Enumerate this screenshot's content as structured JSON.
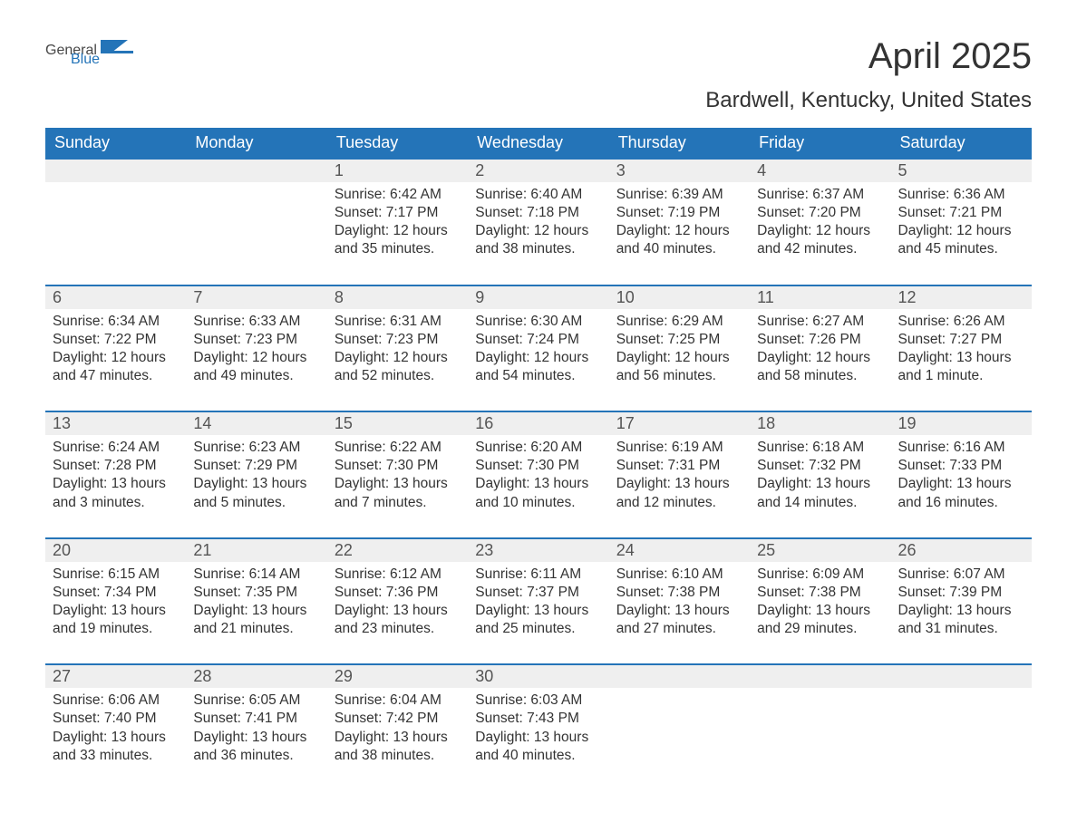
{
  "logo": {
    "general": "General",
    "blue": "Blue"
  },
  "title": "April 2025",
  "location": "Bardwell, Kentucky, United States",
  "colors": {
    "header_bg": "#2474b8",
    "header_text": "#ffffff",
    "daynum_bg": "#efefef",
    "border": "#2474b8",
    "logo_gray": "#474747",
    "logo_blue": "#2474b8",
    "text": "#333333",
    "background": "#ffffff"
  },
  "day_headers": [
    "Sunday",
    "Monday",
    "Tuesday",
    "Wednesday",
    "Thursday",
    "Friday",
    "Saturday"
  ],
  "weeks": [
    {
      "nums": [
        "",
        "",
        "1",
        "2",
        "3",
        "4",
        "5"
      ],
      "cells": [
        {
          "lines": [
            "",
            "",
            "",
            ""
          ]
        },
        {
          "lines": [
            "",
            "",
            "",
            ""
          ]
        },
        {
          "lines": [
            "Sunrise: 6:42 AM",
            "Sunset: 7:17 PM",
            "Daylight: 12 hours",
            "and 35 minutes."
          ]
        },
        {
          "lines": [
            "Sunrise: 6:40 AM",
            "Sunset: 7:18 PM",
            "Daylight: 12 hours",
            "and 38 minutes."
          ]
        },
        {
          "lines": [
            "Sunrise: 6:39 AM",
            "Sunset: 7:19 PM",
            "Daylight: 12 hours",
            "and 40 minutes."
          ]
        },
        {
          "lines": [
            "Sunrise: 6:37 AM",
            "Sunset: 7:20 PM",
            "Daylight: 12 hours",
            "and 42 minutes."
          ]
        },
        {
          "lines": [
            "Sunrise: 6:36 AM",
            "Sunset: 7:21 PM",
            "Daylight: 12 hours",
            "and 45 minutes."
          ]
        }
      ]
    },
    {
      "nums": [
        "6",
        "7",
        "8",
        "9",
        "10",
        "11",
        "12"
      ],
      "cells": [
        {
          "lines": [
            "Sunrise: 6:34 AM",
            "Sunset: 7:22 PM",
            "Daylight: 12 hours",
            "and 47 minutes."
          ]
        },
        {
          "lines": [
            "Sunrise: 6:33 AM",
            "Sunset: 7:23 PM",
            "Daylight: 12 hours",
            "and 49 minutes."
          ]
        },
        {
          "lines": [
            "Sunrise: 6:31 AM",
            "Sunset: 7:23 PM",
            "Daylight: 12 hours",
            "and 52 minutes."
          ]
        },
        {
          "lines": [
            "Sunrise: 6:30 AM",
            "Sunset: 7:24 PM",
            "Daylight: 12 hours",
            "and 54 minutes."
          ]
        },
        {
          "lines": [
            "Sunrise: 6:29 AM",
            "Sunset: 7:25 PM",
            "Daylight: 12 hours",
            "and 56 minutes."
          ]
        },
        {
          "lines": [
            "Sunrise: 6:27 AM",
            "Sunset: 7:26 PM",
            "Daylight: 12 hours",
            "and 58 minutes."
          ]
        },
        {
          "lines": [
            "Sunrise: 6:26 AM",
            "Sunset: 7:27 PM",
            "Daylight: 13 hours",
            "and 1 minute."
          ]
        }
      ]
    },
    {
      "nums": [
        "13",
        "14",
        "15",
        "16",
        "17",
        "18",
        "19"
      ],
      "cells": [
        {
          "lines": [
            "Sunrise: 6:24 AM",
            "Sunset: 7:28 PM",
            "Daylight: 13 hours",
            "and 3 minutes."
          ]
        },
        {
          "lines": [
            "Sunrise: 6:23 AM",
            "Sunset: 7:29 PM",
            "Daylight: 13 hours",
            "and 5 minutes."
          ]
        },
        {
          "lines": [
            "Sunrise: 6:22 AM",
            "Sunset: 7:30 PM",
            "Daylight: 13 hours",
            "and 7 minutes."
          ]
        },
        {
          "lines": [
            "Sunrise: 6:20 AM",
            "Sunset: 7:30 PM",
            "Daylight: 13 hours",
            "and 10 minutes."
          ]
        },
        {
          "lines": [
            "Sunrise: 6:19 AM",
            "Sunset: 7:31 PM",
            "Daylight: 13 hours",
            "and 12 minutes."
          ]
        },
        {
          "lines": [
            "Sunrise: 6:18 AM",
            "Sunset: 7:32 PM",
            "Daylight: 13 hours",
            "and 14 minutes."
          ]
        },
        {
          "lines": [
            "Sunrise: 6:16 AM",
            "Sunset: 7:33 PM",
            "Daylight: 13 hours",
            "and 16 minutes."
          ]
        }
      ]
    },
    {
      "nums": [
        "20",
        "21",
        "22",
        "23",
        "24",
        "25",
        "26"
      ],
      "cells": [
        {
          "lines": [
            "Sunrise: 6:15 AM",
            "Sunset: 7:34 PM",
            "Daylight: 13 hours",
            "and 19 minutes."
          ]
        },
        {
          "lines": [
            "Sunrise: 6:14 AM",
            "Sunset: 7:35 PM",
            "Daylight: 13 hours",
            "and 21 minutes."
          ]
        },
        {
          "lines": [
            "Sunrise: 6:12 AM",
            "Sunset: 7:36 PM",
            "Daylight: 13 hours",
            "and 23 minutes."
          ]
        },
        {
          "lines": [
            "Sunrise: 6:11 AM",
            "Sunset: 7:37 PM",
            "Daylight: 13 hours",
            "and 25 minutes."
          ]
        },
        {
          "lines": [
            "Sunrise: 6:10 AM",
            "Sunset: 7:38 PM",
            "Daylight: 13 hours",
            "and 27 minutes."
          ]
        },
        {
          "lines": [
            "Sunrise: 6:09 AM",
            "Sunset: 7:38 PM",
            "Daylight: 13 hours",
            "and 29 minutes."
          ]
        },
        {
          "lines": [
            "Sunrise: 6:07 AM",
            "Sunset: 7:39 PM",
            "Daylight: 13 hours",
            "and 31 minutes."
          ]
        }
      ]
    },
    {
      "nums": [
        "27",
        "28",
        "29",
        "30",
        "",
        "",
        ""
      ],
      "cells": [
        {
          "lines": [
            "Sunrise: 6:06 AM",
            "Sunset: 7:40 PM",
            "Daylight: 13 hours",
            "and 33 minutes."
          ]
        },
        {
          "lines": [
            "Sunrise: 6:05 AM",
            "Sunset: 7:41 PM",
            "Daylight: 13 hours",
            "and 36 minutes."
          ]
        },
        {
          "lines": [
            "Sunrise: 6:04 AM",
            "Sunset: 7:42 PM",
            "Daylight: 13 hours",
            "and 38 minutes."
          ]
        },
        {
          "lines": [
            "Sunrise: 6:03 AM",
            "Sunset: 7:43 PM",
            "Daylight: 13 hours",
            "and 40 minutes."
          ]
        },
        {
          "lines": [
            "",
            "",
            "",
            ""
          ]
        },
        {
          "lines": [
            "",
            "",
            "",
            ""
          ]
        },
        {
          "lines": [
            "",
            "",
            "",
            ""
          ]
        }
      ]
    }
  ]
}
